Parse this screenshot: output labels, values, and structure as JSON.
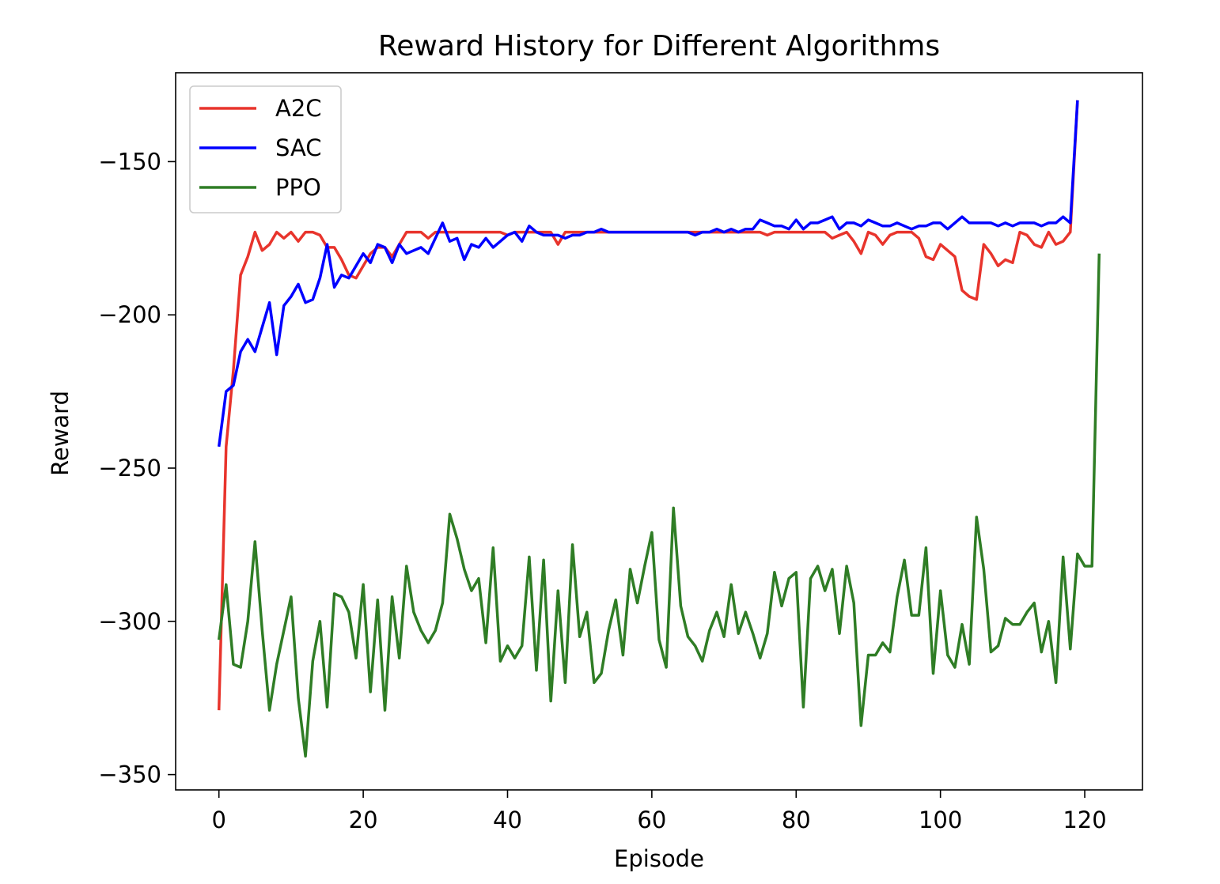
{
  "chart_data": {
    "type": "line",
    "title": "Reward History for Different Algorithms",
    "xlabel": "Episode",
    "ylabel": "Reward",
    "xlim": [
      -6,
      128
    ],
    "ylim": [
      -355,
      -121
    ],
    "xticks": [
      0,
      20,
      40,
      60,
      80,
      100,
      120
    ],
    "yticks": [
      -150,
      -200,
      -250,
      -300,
      -350
    ],
    "xtick_labels": [
      "0",
      "20",
      "40",
      "60",
      "80",
      "100",
      "120"
    ],
    "ytick_labels": [
      "−150",
      "−200",
      "−250",
      "−300",
      "−350"
    ],
    "grid": false,
    "legend_position": "top-left",
    "series": [
      {
        "name": "A2C",
        "color": "#e8342c",
        "values": [
          -329,
          -243,
          -218,
          -187,
          -181,
          -173,
          -179,
          -177,
          -173,
          -175,
          -173,
          -176,
          -173,
          -173,
          -174,
          -178,
          -178,
          -182,
          -187,
          -188,
          -184,
          -180,
          -178,
          -178,
          -181,
          -177,
          -173,
          -173,
          -173,
          -175,
          -173,
          -173,
          -173,
          -173,
          -173,
          -173,
          -173,
          -173,
          -173,
          -173,
          -174,
          -173,
          -173,
          -173,
          -173,
          -173,
          -173,
          -177,
          -173,
          -173,
          -173,
          -173,
          -173,
          -173,
          -173,
          -173,
          -173,
          -173,
          -173,
          -173,
          -173,
          -173,
          -173,
          -173,
          -173,
          -173,
          -173,
          -173,
          -173,
          -173,
          -173,
          -173,
          -173,
          -173,
          -173,
          -173,
          -174,
          -173,
          -173,
          -173,
          -173,
          -173,
          -173,
          -173,
          -173,
          -175,
          -174,
          -173,
          -176,
          -180,
          -173,
          -174,
          -177,
          -174,
          -173,
          -173,
          -173,
          -175,
          -181,
          -182,
          -177,
          -179,
          -181,
          -192,
          -194,
          -195,
          -177,
          -180,
          -184,
          -182,
          -183,
          -173,
          -174,
          -177,
          -178,
          -173,
          -177,
          -176,
          -173,
          -130
        ]
      },
      {
        "name": "SAC",
        "color": "#0000ff",
        "values": [
          -243,
          -225,
          -223,
          -212,
          -208,
          -212,
          -204,
          -196,
          -213,
          -197,
          -194,
          -190,
          -196,
          -195,
          -188,
          -177,
          -191,
          -187,
          -188,
          -184,
          -180,
          -183,
          -177,
          -178,
          -183,
          -177,
          -180,
          -179,
          -178,
          -180,
          -175,
          -170,
          -176,
          -175,
          -182,
          -177,
          -178,
          -175,
          -178,
          -176,
          -174,
          -173,
          -176,
          -171,
          -173,
          -174,
          -174,
          -174,
          -175,
          -174,
          -174,
          -173,
          -173,
          -172,
          -173,
          -173,
          -173,
          -173,
          -173,
          -173,
          -173,
          -173,
          -173,
          -173,
          -173,
          -173,
          -174,
          -173,
          -173,
          -172,
          -173,
          -172,
          -173,
          -172,
          -172,
          -169,
          -170,
          -171,
          -171,
          -172,
          -169,
          -172,
          -170,
          -170,
          -169,
          -168,
          -172,
          -170,
          -170,
          -171,
          -169,
          -170,
          -171,
          -171,
          -170,
          -171,
          -172,
          -171,
          -171,
          -170,
          -170,
          -172,
          -170,
          -168,
          -170,
          -170,
          -170,
          -170,
          -171,
          -170,
          -171,
          -170,
          -170,
          -170,
          -171,
          -170,
          -170,
          -168,
          -170,
          -130
        ]
      },
      {
        "name": "PPO",
        "color": "#2f7d25",
        "values": [
          -306,
          -288,
          -314,
          -315,
          -300,
          -274,
          -303,
          -329,
          -314,
          -303,
          -292,
          -325,
          -344,
          -313,
          -300,
          -328,
          -291,
          -292,
          -297,
          -312,
          -288,
          -323,
          -293,
          -329,
          -292,
          -312,
          -282,
          -297,
          -303,
          -307,
          -303,
          -294,
          -265,
          -273,
          -283,
          -290,
          -286,
          -307,
          -276,
          -313,
          -308,
          -312,
          -308,
          -279,
          -316,
          -280,
          -326,
          -290,
          -320,
          -275,
          -305,
          -297,
          -320,
          -317,
          -303,
          -293,
          -311,
          -283,
          -294,
          -282,
          -271,
          -306,
          -315,
          -263,
          -295,
          -305,
          -308,
          -313,
          -303,
          -297,
          -305,
          -288,
          -304,
          -297,
          -304,
          -312,
          -304,
          -284,
          -295,
          -286,
          -284,
          -328,
          -286,
          -282,
          -290,
          -283,
          -304,
          -282,
          -294,
          -334,
          -311,
          -311,
          -307,
          -310,
          -292,
          -280,
          -298,
          -298,
          -276,
          -317,
          -290,
          -311,
          -315,
          -301,
          -314,
          -266,
          -283,
          -310,
          -308,
          -299,
          -301,
          -301,
          -297,
          -294,
          -310,
          -300,
          -320,
          -279,
          -309,
          -278,
          -282,
          -282,
          -180
        ]
      }
    ]
  }
}
